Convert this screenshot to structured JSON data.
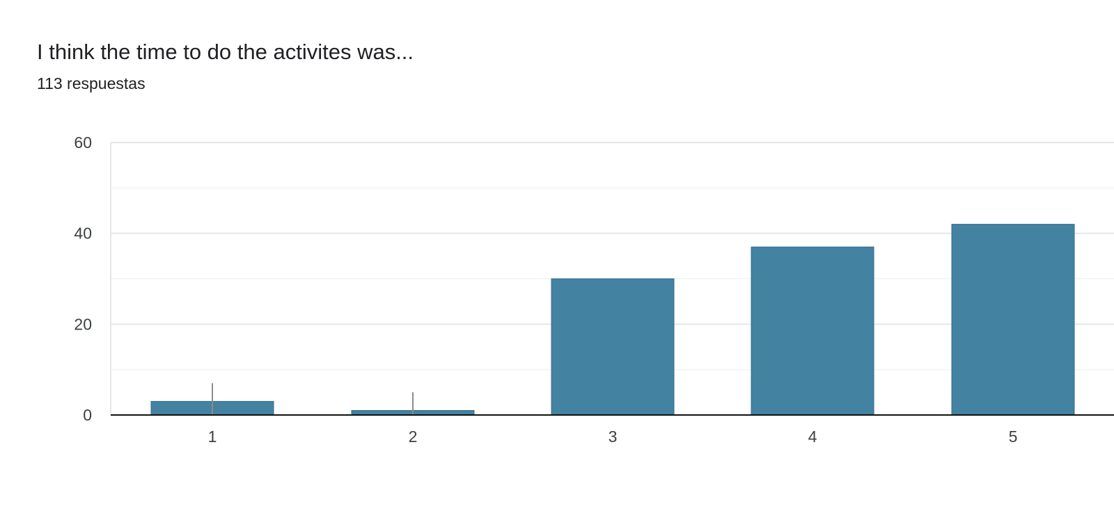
{
  "header": {
    "title": "I think the time to do the activites was...",
    "responses": "113 respuestas"
  },
  "colors": {
    "bar": "#4382a1",
    "bar_stroke": "#2f6f8f",
    "grid_major": "#e6e6e6",
    "grid_minor": "#f3f3f3",
    "axis": "#111111",
    "error_bar": "#8c8c8c"
  },
  "chart_data": {
    "type": "bar",
    "categories": [
      "1",
      "2",
      "3",
      "4",
      "5"
    ],
    "values": [
      3,
      1,
      30,
      37,
      42
    ],
    "error_bar_top": [
      7,
      5,
      null,
      null,
      null
    ],
    "ylim": [
      0,
      60
    ],
    "yticks": [
      "0",
      "20",
      "40",
      "60"
    ],
    "grid": true,
    "legend": "none"
  }
}
